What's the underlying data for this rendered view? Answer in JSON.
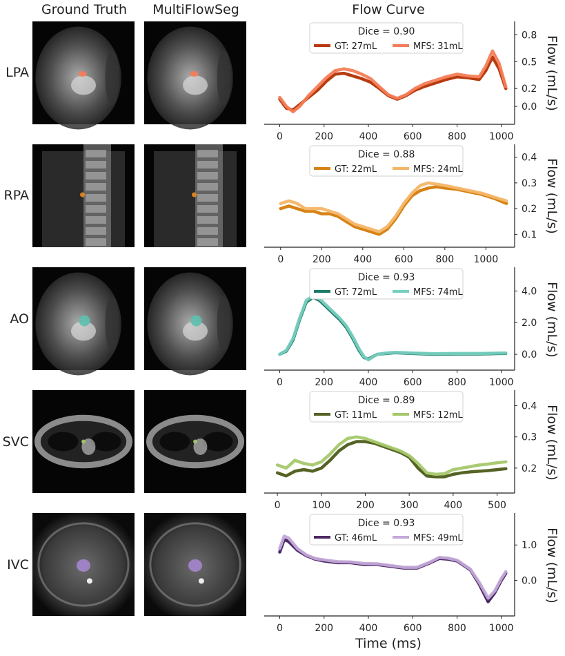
{
  "column_titles": [
    "Ground Truth",
    "MultiFlowSeg",
    "Flow Curve"
  ],
  "xlabel": "Time (ms)",
  "ylabel": "Flow (mL/s)",
  "chart_data": [
    {
      "type": "line",
      "label": "LPA",
      "title": "Dice = 0.90",
      "xlim": [
        -70,
        1060
      ],
      "ylim": [
        -0.2,
        0.95
      ],
      "xticks": [
        0,
        200,
        400,
        600,
        800,
        1000
      ],
      "yticks": [
        0.0,
        0.2,
        0.5,
        0.8
      ],
      "yticklabels": [
        "0.0",
        "0.2",
        "0.5",
        "0.8"
      ],
      "series": [
        {
          "name": "GT: 27mL",
          "color": "#b83b10",
          "x": [
            0,
            30,
            60,
            90,
            130,
            170,
            210,
            250,
            290,
            330,
            370,
            410,
            450,
            490,
            530,
            570,
            610,
            650,
            700,
            750,
            800,
            850,
            900,
            930,
            960,
            990,
            1020
          ],
          "y": [
            0.08,
            -0.02,
            -0.04,
            0.02,
            0.1,
            0.18,
            0.28,
            0.36,
            0.37,
            0.34,
            0.31,
            0.27,
            0.2,
            0.12,
            0.08,
            0.12,
            0.18,
            0.22,
            0.26,
            0.3,
            0.33,
            0.32,
            0.3,
            0.4,
            0.55,
            0.42,
            0.2
          ]
        },
        {
          "name": "MFS: 31mL",
          "color": "#f47d57",
          "x": [
            0,
            30,
            60,
            90,
            130,
            170,
            210,
            250,
            290,
            330,
            370,
            410,
            450,
            490,
            530,
            570,
            610,
            650,
            700,
            750,
            800,
            850,
            900,
            930,
            960,
            990,
            1020
          ],
          "y": [
            0.1,
            0.0,
            -0.06,
            0.0,
            0.12,
            0.22,
            0.32,
            0.4,
            0.42,
            0.4,
            0.36,
            0.31,
            0.22,
            0.13,
            0.09,
            0.13,
            0.2,
            0.25,
            0.29,
            0.33,
            0.36,
            0.34,
            0.33,
            0.45,
            0.62,
            0.48,
            0.22
          ]
        }
      ]
    },
    {
      "type": "line",
      "label": "RPA",
      "title": "Dice = 0.88",
      "xlim": [
        -80,
        1140
      ],
      "ylim": [
        0.05,
        0.45
      ],
      "xticks": [
        0,
        200,
        400,
        600,
        800,
        1000
      ],
      "yticks": [
        0.1,
        0.2,
        0.3,
        0.4
      ],
      "yticklabels": [
        "0.1",
        "0.2",
        "0.3",
        "0.4"
      ],
      "series": [
        {
          "name": "GT: 22mL",
          "color": "#d68214",
          "x": [
            0,
            40,
            80,
            120,
            160,
            200,
            240,
            280,
            320,
            360,
            400,
            440,
            480,
            520,
            560,
            600,
            640,
            680,
            720,
            760,
            800,
            860,
            920,
            980,
            1040,
            1100
          ],
          "y": [
            0.2,
            0.21,
            0.2,
            0.19,
            0.19,
            0.18,
            0.18,
            0.17,
            0.15,
            0.13,
            0.12,
            0.11,
            0.1,
            0.12,
            0.16,
            0.21,
            0.25,
            0.27,
            0.28,
            0.285,
            0.28,
            0.275,
            0.265,
            0.255,
            0.24,
            0.22
          ]
        },
        {
          "name": "MFS: 24mL",
          "color": "#f4b567",
          "x": [
            0,
            40,
            80,
            120,
            160,
            200,
            240,
            280,
            320,
            360,
            400,
            440,
            480,
            520,
            560,
            600,
            640,
            680,
            720,
            760,
            800,
            860,
            920,
            980,
            1040,
            1100
          ],
          "y": [
            0.22,
            0.23,
            0.22,
            0.2,
            0.2,
            0.2,
            0.19,
            0.18,
            0.16,
            0.14,
            0.13,
            0.12,
            0.11,
            0.13,
            0.17,
            0.22,
            0.26,
            0.29,
            0.3,
            0.295,
            0.29,
            0.28,
            0.27,
            0.26,
            0.245,
            0.23
          ]
        }
      ]
    },
    {
      "type": "line",
      "label": "AO",
      "title": "Dice = 0.93",
      "xlim": [
        -70,
        1060
      ],
      "ylim": [
        -1.0,
        5.5
      ],
      "xticks": [
        0,
        200,
        400,
        600,
        800,
        1000
      ],
      "yticks": [
        0.0,
        2.0,
        4.0
      ],
      "yticklabels": [
        "0.0",
        "2.0",
        "4.0"
      ],
      "series": [
        {
          "name": "GT: 72mL",
          "color": "#1d7a66",
          "x": [
            0,
            30,
            60,
            90,
            120,
            150,
            180,
            210,
            240,
            270,
            300,
            330,
            360,
            380,
            400,
            440,
            480,
            520,
            600,
            700,
            800,
            900,
            1000,
            1020
          ],
          "y": [
            0.0,
            0.2,
            0.9,
            2.2,
            3.3,
            3.6,
            3.4,
            3.0,
            2.6,
            2.2,
            1.7,
            1.0,
            0.2,
            -0.2,
            -0.3,
            0.0,
            0.05,
            0.1,
            0.05,
            0.0,
            0.02,
            0.02,
            0.05,
            0.05
          ]
        },
        {
          "name": "MFS: 74mL",
          "color": "#77cfc0",
          "x": [
            0,
            30,
            60,
            90,
            120,
            150,
            180,
            210,
            240,
            270,
            300,
            330,
            360,
            380,
            400,
            440,
            480,
            520,
            600,
            700,
            800,
            900,
            1000,
            1020
          ],
          "y": [
            0.0,
            0.25,
            1.0,
            2.3,
            3.4,
            3.7,
            3.5,
            3.1,
            2.7,
            2.3,
            1.8,
            1.1,
            0.3,
            -0.15,
            -0.35,
            0.0,
            0.08,
            0.12,
            0.08,
            0.04,
            0.05,
            0.05,
            0.08,
            0.08
          ]
        }
      ]
    },
    {
      "type": "line",
      "label": "SVC",
      "title": "Dice = 0.89",
      "xlim": [
        -30,
        540
      ],
      "ylim": [
        0.12,
        0.45
      ],
      "xticks": [
        0,
        100,
        200,
        300,
        400,
        500
      ],
      "yticks": [
        0.2,
        0.3,
        0.4
      ],
      "yticklabels": [
        "0.2",
        "0.3",
        "0.4"
      ],
      "series": [
        {
          "name": "GT: 11mL",
          "color": "#556325",
          "x": [
            0,
            20,
            40,
            60,
            80,
            100,
            120,
            140,
            160,
            180,
            200,
            220,
            240,
            260,
            280,
            300,
            320,
            340,
            360,
            380,
            400,
            420,
            440,
            460,
            480,
            500,
            520
          ],
          "y": [
            0.185,
            0.175,
            0.19,
            0.195,
            0.19,
            0.2,
            0.225,
            0.255,
            0.275,
            0.285,
            0.285,
            0.28,
            0.27,
            0.26,
            0.25,
            0.235,
            0.2,
            0.175,
            0.172,
            0.172,
            0.18,
            0.185,
            0.188,
            0.19,
            0.192,
            0.195,
            0.198
          ]
        },
        {
          "name": "MFS: 12mL",
          "color": "#a5c86a",
          "x": [
            0,
            20,
            40,
            60,
            80,
            100,
            120,
            140,
            160,
            180,
            200,
            220,
            240,
            260,
            280,
            300,
            320,
            340,
            360,
            380,
            400,
            420,
            440,
            460,
            480,
            500,
            520
          ],
          "y": [
            0.21,
            0.2,
            0.225,
            0.215,
            0.21,
            0.22,
            0.245,
            0.275,
            0.295,
            0.3,
            0.295,
            0.285,
            0.275,
            0.265,
            0.255,
            0.24,
            0.215,
            0.185,
            0.18,
            0.182,
            0.195,
            0.2,
            0.205,
            0.21,
            0.213,
            0.217,
            0.22
          ]
        }
      ]
    },
    {
      "type": "line",
      "label": "IVC",
      "title": "Dice = 0.93",
      "xlim": [
        -70,
        1060
      ],
      "ylim": [
        -1.0,
        1.9
      ],
      "xticks": [
        0,
        200,
        400,
        600,
        800,
        1000
      ],
      "yticks": [
        0.0,
        1.0
      ],
      "yticklabels": [
        "0.0",
        "1.0"
      ],
      "series": [
        {
          "name": "GT: 46mL",
          "color": "#4b2a66",
          "x": [
            0,
            20,
            40,
            80,
            120,
            160,
            200,
            260,
            320,
            380,
            440,
            500,
            560,
            620,
            680,
            720,
            760,
            800,
            860,
            900,
            940,
            970,
            1000,
            1020
          ],
          "y": [
            0.8,
            1.15,
            1.1,
            0.85,
            0.7,
            0.6,
            0.55,
            0.5,
            0.5,
            0.45,
            0.45,
            0.4,
            0.35,
            0.35,
            0.5,
            0.62,
            0.6,
            0.55,
            0.3,
            -0.1,
            -0.6,
            -0.35,
            0.0,
            0.2
          ]
        },
        {
          "name": "MFS: 49mL",
          "color": "#c3a8d8",
          "x": [
            0,
            20,
            40,
            80,
            120,
            160,
            200,
            260,
            320,
            380,
            440,
            500,
            560,
            620,
            680,
            720,
            760,
            800,
            860,
            900,
            940,
            970,
            1000,
            1020
          ],
          "y": [
            0.9,
            1.25,
            1.2,
            0.9,
            0.72,
            0.62,
            0.58,
            0.53,
            0.52,
            0.48,
            0.47,
            0.42,
            0.37,
            0.37,
            0.52,
            0.65,
            0.63,
            0.57,
            0.32,
            -0.05,
            -0.5,
            -0.3,
            0.05,
            0.25
          ]
        }
      ]
    }
  ],
  "mri_panels": [
    {
      "label": "LPA",
      "style": "sagittal",
      "mask_color": "#f47d57"
    },
    {
      "label": "RPA",
      "style": "spine",
      "mask_color": "#e58a1f"
    },
    {
      "label": "AO",
      "style": "sagittal",
      "mask_color": "#5ebfb0"
    },
    {
      "label": "SVC",
      "style": "axial",
      "mask_color": "#a5c86a"
    },
    {
      "label": "IVC",
      "style": "axial-dark",
      "mask_color": "#a484cc"
    }
  ]
}
